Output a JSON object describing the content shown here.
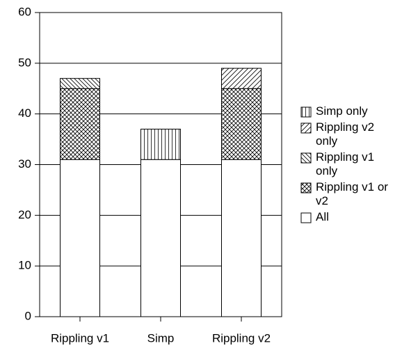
{
  "chart_data": {
    "type": "stacked-bar",
    "categories": [
      "Rippling v1",
      "Simp",
      "Rippling v2"
    ],
    "series": [
      {
        "name": "All",
        "color": "#ffffff",
        "pattern": "none",
        "values": [
          31,
          31,
          31
        ]
      },
      {
        "name": "Rippling v1 or v2",
        "color": "#ffffff",
        "pattern": "crosshatch",
        "values": [
          14,
          0,
          14
        ]
      },
      {
        "name": "Rippling v1 only",
        "color": "#ffffff",
        "pattern": "backslash",
        "values": [
          2,
          0,
          0
        ]
      },
      {
        "name": "Rippling v2 only",
        "color": "#ffffff",
        "pattern": "slash",
        "values": [
          0,
          0,
          4
        ]
      },
      {
        "name": "Simp only",
        "color": "#ffffff",
        "pattern": "vertical",
        "values": [
          0,
          6,
          0
        ]
      }
    ],
    "ylim": [
      0,
      60
    ],
    "yticks": [
      0,
      10,
      20,
      30,
      40,
      50,
      60
    ],
    "grid": true,
    "legend": "right"
  }
}
